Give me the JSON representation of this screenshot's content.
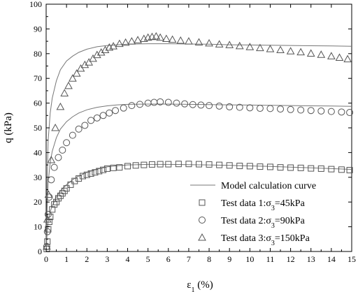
{
  "chart_data": {
    "type": "scatter",
    "xlabel": "ε1 (%)",
    "xlabel_main": "ε",
    "xlabel_sub": "1",
    "xlabel_unit": " (%)",
    "ylabel": "q (kPa)",
    "xlim": [
      0,
      15
    ],
    "ylim": [
      0,
      100
    ],
    "xticks": [
      0,
      1,
      2,
      3,
      4,
      5,
      6,
      7,
      8,
      9,
      10,
      11,
      12,
      13,
      14,
      15
    ],
    "yticks": [
      0,
      10,
      20,
      30,
      40,
      50,
      60,
      70,
      80,
      90,
      100
    ],
    "grid": false,
    "legend_position": "bottom-right",
    "model_curve_label": "Model calculation curve",
    "series": [
      {
        "name": "Test data 1:σ3=45kPa",
        "legend_main": "Test data 1:σ",
        "legend_sub": "3",
        "legend_tail": "=45kPa",
        "marker": "square",
        "x": [
          0.03,
          0.06,
          0.1,
          0.15,
          0.2,
          0.3,
          0.4,
          0.5,
          0.6,
          0.7,
          0.8,
          0.9,
          1.0,
          1.2,
          1.4,
          1.6,
          1.8,
          2.0,
          2.2,
          2.4,
          2.6,
          2.8,
          3.0,
          3.3,
          3.6,
          4.0,
          4.4,
          4.8,
          5.2,
          5.6,
          6.0,
          6.5,
          7.0,
          7.5,
          8.0,
          8.5,
          9.0,
          9.5,
          10.0,
          10.5,
          11.0,
          11.5,
          12.0,
          12.5,
          13.0,
          13.5,
          14.0,
          14.5,
          14.9
        ],
        "y": [
          1,
          4,
          9,
          12,
          14,
          17,
          19,
          20,
          21.5,
          22.5,
          23.5,
          24.5,
          25.5,
          27,
          28.5,
          29.5,
          30.5,
          31,
          31.5,
          32,
          32.5,
          33,
          33.5,
          33.8,
          34,
          34.5,
          34.8,
          35,
          35.2,
          35.3,
          35.3,
          35.4,
          35.4,
          35.3,
          35.2,
          35,
          34.8,
          34.6,
          34.5,
          34.3,
          34.2,
          34,
          33.9,
          33.8,
          33.6,
          33.5,
          33.3,
          33.1,
          32.9
        ]
      },
      {
        "name": "Test data 2:σ3=90kPa",
        "legend_main": "Test data 2:σ",
        "legend_sub": "3",
        "legend_tail": "=90kPa",
        "marker": "circle",
        "x": [
          0.03,
          0.06,
          0.1,
          0.15,
          0.25,
          0.4,
          0.6,
          0.8,
          1.0,
          1.3,
          1.6,
          1.9,
          2.2,
          2.5,
          2.8,
          3.1,
          3.4,
          3.8,
          4.2,
          4.6,
          5.0,
          5.3,
          5.6,
          6.0,
          6.4,
          6.8,
          7.2,
          7.6,
          8.0,
          8.5,
          9.0,
          9.5,
          10.0,
          10.5,
          11.0,
          11.5,
          12.0,
          12.5,
          13.0,
          13.5,
          14.0,
          14.5,
          14.9
        ],
        "y": [
          2,
          8,
          15,
          22,
          29,
          34,
          38,
          41,
          44,
          47,
          49.5,
          51,
          53,
          54,
          55,
          56,
          57,
          58,
          59,
          59.5,
          60,
          60.3,
          60.5,
          60.3,
          60,
          59.7,
          59.4,
          59.2,
          59,
          58.8,
          58.5,
          58.3,
          58.1,
          57.9,
          57.8,
          57.6,
          57.4,
          57.2,
          57,
          56.8,
          56.6,
          56.4,
          56.2
        ]
      },
      {
        "name": "Test data 3:σ3=150kPa",
        "legend_main": "Test data 3:σ",
        "legend_sub": "3",
        "legend_tail": "=150kPa",
        "marker": "triangle",
        "x": [
          0.03,
          0.06,
          0.12,
          0.25,
          0.45,
          0.7,
          0.9,
          1.1,
          1.3,
          1.5,
          1.7,
          1.9,
          2.1,
          2.3,
          2.5,
          2.7,
          2.9,
          3.1,
          3.3,
          3.6,
          3.9,
          4.2,
          4.5,
          4.8,
          5.0,
          5.2,
          5.4,
          5.6,
          5.9,
          6.2,
          6.6,
          7.0,
          7.5,
          8.0,
          8.5,
          9.0,
          9.5,
          10.0,
          10.5,
          11.0,
          11.5,
          12.0,
          12.5,
          13.0,
          13.5,
          14.0,
          14.4,
          14.8
        ],
        "y": [
          2,
          13,
          23,
          37,
          50,
          58.5,
          64,
          67,
          70,
          72,
          74,
          75.5,
          76.5,
          78,
          79.5,
          80.5,
          81.5,
          82.5,
          83,
          84,
          84.5,
          85,
          85.5,
          86,
          86.5,
          86.8,
          87,
          86.5,
          86,
          85.7,
          85.3,
          85,
          84.6,
          84.2,
          83.8,
          83.5,
          83.1,
          82.7,
          82.3,
          81.9,
          81.5,
          81,
          80.6,
          80.1,
          79.6,
          79,
          78.4,
          77.8
        ]
      }
    ],
    "model_curves": [
      {
        "x": [
          0,
          0.05,
          0.1,
          0.2,
          0.3,
          0.5,
          0.7,
          1.0,
          1.3,
          1.6,
          2.0,
          2.5,
          3.0,
          3.5,
          4.0,
          5.0,
          6.0,
          7.0,
          8.0,
          9.0,
          10.0,
          11.0,
          12.0,
          13.0,
          14.0,
          15.0
        ],
        "y": [
          0,
          8,
          12,
          16,
          18.5,
          22,
          24.5,
          27,
          29,
          30.5,
          32,
          33.3,
          34.2,
          34.7,
          35,
          35.2,
          35.2,
          35.1,
          35,
          34.8,
          34.6,
          34.4,
          34.1,
          33.8,
          33.5,
          33.2
        ]
      },
      {
        "x": [
          0,
          0.05,
          0.1,
          0.2,
          0.3,
          0.5,
          0.7,
          1.0,
          1.3,
          1.6,
          2.0,
          2.5,
          3.0,
          3.5,
          4.0,
          5.0,
          6.0,
          7.0,
          8.0,
          9.0,
          10.0,
          11.0,
          12.0,
          13.0,
          14.0,
          15.0
        ],
        "y": [
          0,
          18,
          28,
          36,
          40.5,
          46,
          49.5,
          52.5,
          54.5,
          56,
          57.3,
          58.3,
          58.9,
          59.3,
          59.5,
          59.6,
          59.6,
          59.5,
          59.4,
          59.3,
          59.2,
          59.1,
          59,
          58.9,
          58.8,
          58.7
        ]
      },
      {
        "x": [
          0,
          0.05,
          0.1,
          0.2,
          0.3,
          0.5,
          0.7,
          1.0,
          1.3,
          1.6,
          2.0,
          2.5,
          3.0,
          3.5,
          4.0,
          5.0,
          6.0,
          7.0,
          8.0,
          9.0,
          10.0,
          11.0,
          12.0,
          13.0,
          14.0,
          15.0
        ],
        "y": [
          0,
          30,
          45,
          56,
          62,
          69,
          73.5,
          77,
          79,
          80.5,
          81.8,
          82.8,
          83.3,
          83.6,
          83.8,
          84,
          84,
          83.9,
          83.8,
          83.6,
          83.5,
          83.4,
          83.3,
          83.2,
          83.1,
          83
        ]
      }
    ]
  }
}
